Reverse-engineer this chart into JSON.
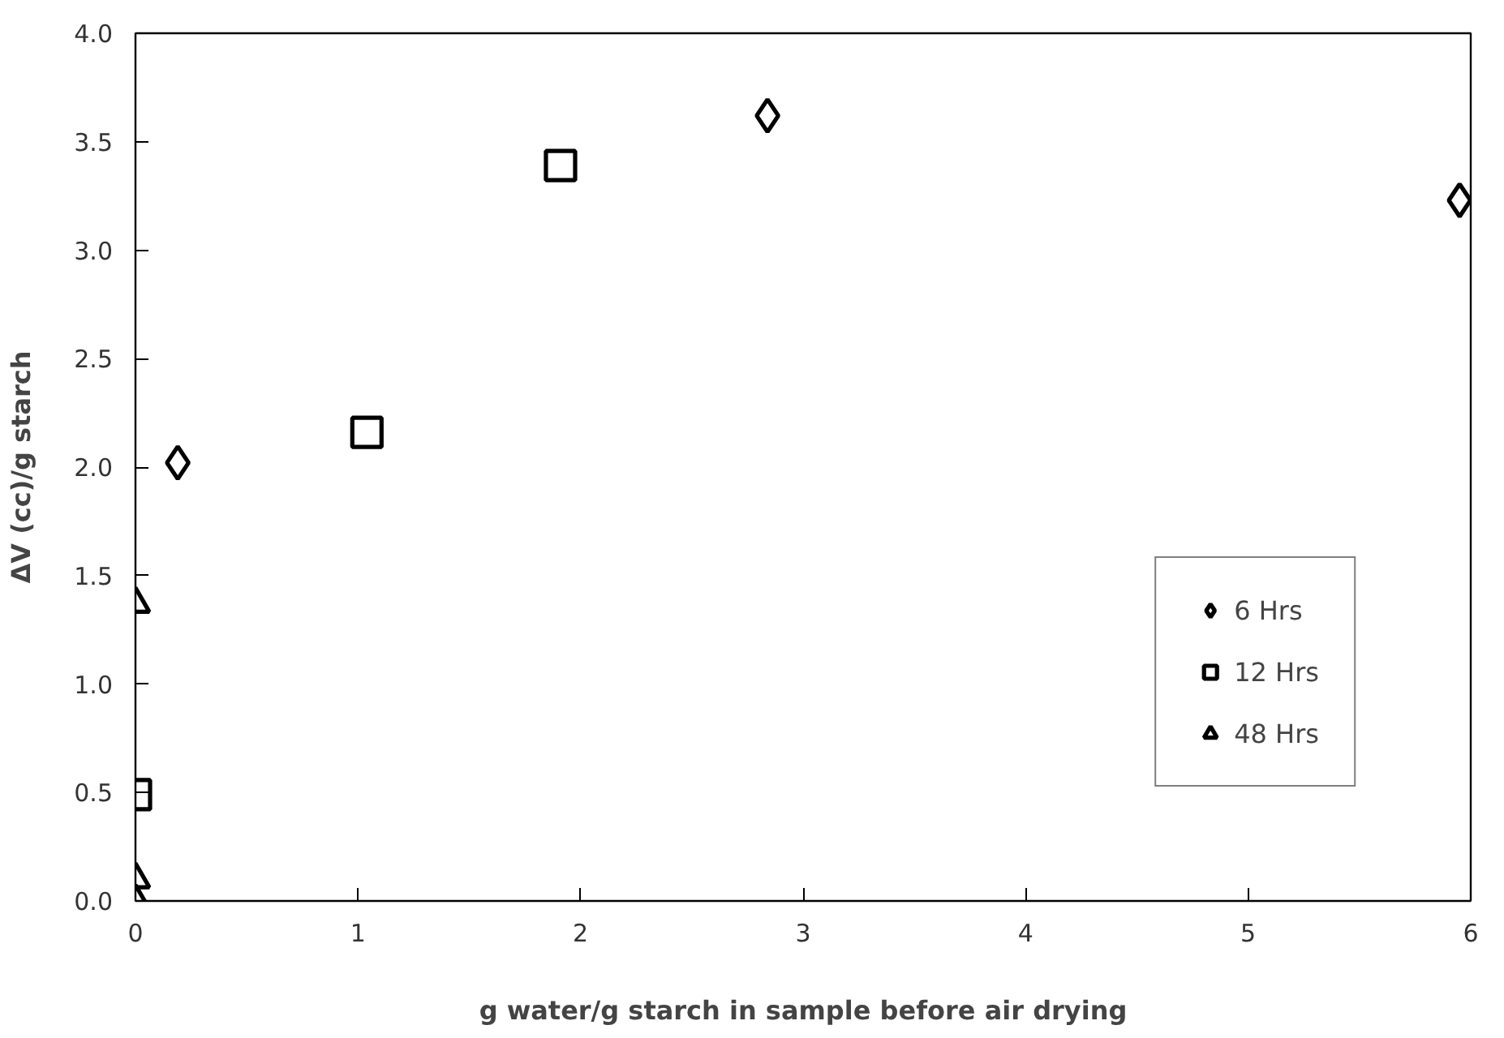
{
  "chart_data": {
    "type": "scatter",
    "xlabel": "g water/g starch in sample before air drying",
    "ylabel": "ΔV (cc)/g starch",
    "xlim": [
      0,
      6
    ],
    "xticks": [
      0,
      1,
      2,
      3,
      4,
      5,
      6
    ],
    "ylim": [
      0,
      4
    ],
    "yticks": [
      {
        "value": 0,
        "label": "0.0"
      },
      {
        "value": 0.5,
        "label": "0.5"
      },
      {
        "value": 1,
        "label": "1.0"
      },
      {
        "value": 1.5,
        "label": "1.5"
      },
      {
        "value": 2,
        "label": "2.0"
      },
      {
        "value": 2.5,
        "label": "2.5"
      },
      {
        "value": 3,
        "label": "3.0"
      },
      {
        "value": 3.5,
        "label": "3.5"
      },
      {
        "value": 4,
        "label": "4.0"
      }
    ],
    "grid": false,
    "legend": "bottom right",
    "series": [
      {
        "name": "6 Hrs",
        "color": "#000000",
        "marker": "diamond",
        "x": [
          0.19,
          2.84,
          5.95
        ],
        "values": [
          2.02,
          3.62,
          3.23
        ]
      },
      {
        "name": "12 Hrs",
        "color": "#000000",
        "marker": "square",
        "x": [
          1.04,
          1.91,
          0.0
        ],
        "values": [
          2.16,
          3.39,
          0.49
        ]
      },
      {
        "name": "48 Hrs",
        "color": "#000000",
        "marker": "triangle",
        "x": [
          0.0,
          0.0,
          0.0
        ],
        "values": [
          1.37,
          0.1,
          0.0
        ]
      }
    ]
  }
}
